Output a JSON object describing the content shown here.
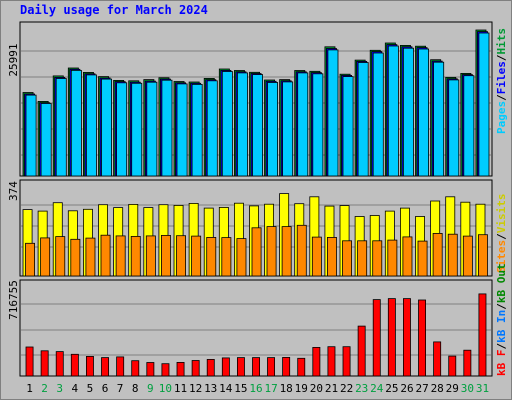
{
  "title": "Daily usage for March 2024",
  "colors": {
    "background": "#c0c0c0",
    "frame_border": "#808080",
    "title": "#0000ff",
    "hits": "#009933",
    "files": "#0000ff",
    "pages": "#00ccff",
    "visits": "#ffff00",
    "sites": "#ff8800",
    "kbin": "#0077ff",
    "kbout": "#008800",
    "kbf": "#ff0000",
    "weekday_label": "#000000",
    "weekend_label": "#00a040"
  },
  "legend": {
    "panel1": {
      "hits": "Hits",
      "sep1": "/",
      "files": "Files",
      "sep2": "/",
      "pages": "Pages"
    },
    "panel2": {
      "visits": "Visits",
      "sep1": "/",
      "sites": "Sites"
    },
    "panel3": {
      "kbout": "kB Out",
      "sep1": "/",
      "kbin": "kB In",
      "sep2": "/",
      "kbf": "kB F"
    }
  },
  "chart_data": {
    "type": "bar",
    "title": "Daily usage for March 2024",
    "categories": [
      "1",
      "2",
      "3",
      "4",
      "5",
      "6",
      "7",
      "8",
      "9",
      "10",
      "11",
      "12",
      "13",
      "14",
      "15",
      "16",
      "17",
      "18",
      "19",
      "20",
      "21",
      "22",
      "23",
      "24",
      "25",
      "26",
      "27",
      "28",
      "29",
      "30",
      "31"
    ],
    "weekend_days": [
      "2",
      "3",
      "9",
      "10",
      "16",
      "17",
      "23",
      "24",
      "30",
      "31"
    ],
    "panels": [
      {
        "name": "hits-files-pages",
        "ymax_label": "25991",
        "ymax": 25991,
        "series": [
          {
            "name": "Hits",
            "values": [
              14862,
              13272,
              17811,
              19227,
              18449,
              17691,
              17021,
              16948,
              17161,
              17474,
              16828,
              16740,
              17376,
              19046,
              18786,
              18468,
              17096,
              17167,
              18782,
              18640,
              23002,
              18130,
              20626,
              22382,
              23683,
              23250,
              23105,
              20709,
              17552,
              18257,
              25991
            ]
          },
          {
            "name": "Files",
            "values": [
              14600,
              13050,
              17550,
              19000,
              18200,
              17450,
              16800,
              16700,
              16900,
              17250,
              16600,
              16500,
              17150,
              18800,
              18550,
              18250,
              16850,
              16950,
              18550,
              18400,
              22700,
              17900,
              20400,
              22150,
              23400,
              23000,
              22850,
              20450,
              17300,
              18050,
              25700
            ]
          },
          {
            "name": "Pages",
            "values": [
              14400,
              12900,
              17350,
              18800,
              18000,
              17250,
              16600,
              16500,
              16700,
              17050,
              16400,
              16300,
              16950,
              18600,
              18350,
              18050,
              16650,
              16750,
              18350,
              18200,
              22450,
              17700,
              20200,
              21900,
              23150,
              22750,
              22600,
              20250,
              17100,
              17850,
              25450
            ]
          }
        ]
      },
      {
        "name": "visits-sites",
        "ymax_label": "374",
        "ymax": 374,
        "series": [
          {
            "name": "Visits",
            "values": [
              270,
              264,
              298,
              265,
              271,
              290,
              278,
              291,
              278,
              290,
              287,
              295,
              276,
              279,
              296,
              285,
              292,
              335,
              294,
              322,
              284,
              286,
              242,
              246,
              264,
              276,
              242,
              305,
              322,
              300,
              292
            ]
          },
          {
            "name": "Sites",
            "values": [
              133,
              155,
              160,
              149,
              154,
              166,
              163,
              161,
              163,
              165,
              164,
              162,
              157,
              156,
              152,
              196,
              201,
              201,
              206,
              158,
              157,
              143,
              143,
              143,
              146,
              159,
              142,
              173,
              170,
              162,
              168
            ]
          }
        ]
      },
      {
        "name": "kb",
        "ymax_label": "716755",
        "ymax": 716755,
        "series": [
          {
            "name": "kB F",
            "values": [
              226290,
              196570,
              190080,
              169110,
              153000,
              143000,
              149000,
              119000,
              105000,
              96000,
              106000,
              121000,
              129000,
              141000,
              143000,
              143000,
              143000,
              145000,
              138000,
              223000,
              228000,
              228000,
              389000,
              595000,
              603000,
              603000,
              592000,
              266000,
              155000,
              201000,
              640000
            ]
          }
        ]
      }
    ]
  }
}
